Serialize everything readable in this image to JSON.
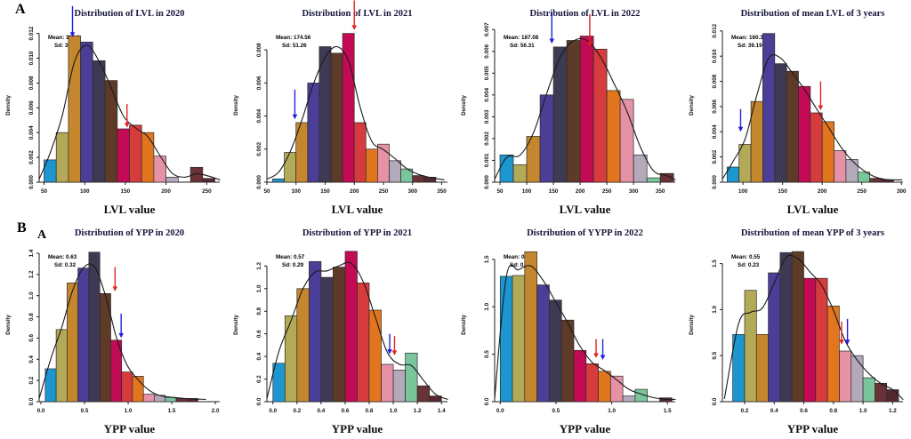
{
  "figure": {
    "section_labels": {
      "a": "A",
      "b": "B",
      "b_sub": "A"
    },
    "background": "#ffffff",
    "title_color": "#15153c",
    "curve_color": "#1a1a1a",
    "bar_outline": "#2e2a28",
    "palette": [
      "#1d96cf",
      "#b3aa58",
      "#c5872e",
      "#4a3e97",
      "#3f3a53",
      "#5e3a28",
      "#c30a54",
      "#d63b3e",
      "#e2761f",
      "#e591a6",
      "#b4a9bb",
      "#79c59c",
      "#693238",
      "#552830"
    ],
    "arrow_colors": {
      "blue": "#2020dd",
      "red": "#e32222"
    }
  },
  "chart_data": [
    {
      "id": "lvl-2020",
      "type": "bar",
      "title": "Distribution of  LVL in 2020",
      "xlabel": "LVL value",
      "ylabel": "Density",
      "mean_label": "Mean: 119.4",
      "sd_label": "Sd: 39.91",
      "bin_start": 50,
      "bin_width": 15,
      "values": [
        0.0018,
        0.004,
        0.0118,
        0.0113,
        0.0098,
        0.0082,
        0.0043,
        0.0046,
        0.004,
        0.0021,
        0.0004,
        0,
        0.0012,
        0.0003
      ],
      "xlim": [
        44,
        266
      ],
      "xticks": [
        50,
        100,
        150,
        200,
        250
      ],
      "xtick_labels": [
        "50",
        "100",
        "150",
        "200",
        "250"
      ],
      "ylim": [
        0,
        0.0124
      ],
      "yticks": [
        0,
        0.002,
        0.004,
        0.006,
        0.008,
        0.01,
        0.012
      ],
      "ytick_labels": [
        "0.000",
        "0.002",
        "0.004",
        "0.006",
        "0.008",
        "0.010",
        "0.012"
      ],
      "legend": "none",
      "grid": false,
      "curve": true,
      "arrows": [
        {
          "color": "blue",
          "x": 85,
          "y_tip": 0.0117,
          "y_tail": 0.0142
        },
        {
          "color": "red",
          "x": 152,
          "y_tip": 0.0044,
          "y_tail": 0.0063
        }
      ]
    },
    {
      "id": "lvl-2021",
      "type": "bar",
      "title": "Distribution of  LVL in 2021",
      "xlabel": "LVL value",
      "ylabel": "Density",
      "mean_label": "Mean: 174.56",
      "sd_label": "Sd: 51.26",
      "bin_start": 60,
      "bin_width": 20,
      "values": [
        0.0002,
        0.0018,
        0.0036,
        0.006,
        0.0082,
        0.0078,
        0.009,
        0.0036,
        0.002,
        0.0023,
        0.0013,
        0.0008,
        0.0004,
        0.0003
      ],
      "xlim": [
        50,
        360
      ],
      "xticks": [
        50,
        100,
        150,
        200,
        250,
        300,
        350
      ],
      "xtick_labels": [
        "50",
        "100",
        "150",
        "200",
        "250",
        "300",
        "350"
      ],
      "ylim": [
        0,
        0.0093
      ],
      "yticks": [
        0,
        0.002,
        0.004,
        0.006,
        0.008
      ],
      "ytick_labels": [
        "0.000",
        "0.002",
        "0.004",
        "0.006",
        "0.008"
      ],
      "legend": "none",
      "grid": false,
      "curve": true,
      "arrows": [
        {
          "color": "blue",
          "x": 98,
          "y_tip": 0.0038,
          "y_tail": 0.0056
        },
        {
          "color": "red",
          "x": 200,
          "y_tip": 0.0092,
          "y_tail": 0.011
        }
      ]
    },
    {
      "id": "lvl-2022",
      "type": "bar",
      "title": "Distribution of  LVL in 2022",
      "xlabel": "LVL value",
      "ylabel": "Density",
      "mean_label": "Mean: 187.08",
      "sd_label": "Sd: 56.31",
      "bin_start": 50,
      "bin_width": 25,
      "values": [
        0.00125,
        0.0008,
        0.0021,
        0.004,
        0.0062,
        0.0065,
        0.0067,
        0.0061,
        0.0042,
        0.0038,
        0.00125,
        0.0002,
        0.0004
      ],
      "xlim": [
        40,
        378
      ],
      "xticks": [
        50,
        100,
        150,
        200,
        250,
        300,
        350
      ],
      "xtick_labels": [
        "50",
        "100",
        "150",
        "200",
        "250",
        "300",
        "350"
      ],
      "ylim": [
        0,
        0.00705
      ],
      "yticks": [
        0,
        0.001,
        0.002,
        0.003,
        0.004,
        0.005,
        0.006,
        0.007
      ],
      "ytick_labels": [
        "0.000",
        "0.001",
        "0.002",
        "0.003",
        "0.004",
        "0.005",
        "0.006",
        "0.007"
      ],
      "legend": "none",
      "grid": false,
      "curve": true,
      "arrows": [
        {
          "color": "blue",
          "x": 147,
          "y_tip": 0.00635,
          "y_tail": 0.0078
        },
        {
          "color": "red",
          "x": 218,
          "y_tip": 0.0062,
          "y_tail": 0.0077
        }
      ]
    },
    {
      "id": "lvl-mean",
      "type": "bar",
      "title": "Distribution of  mean LVL of 3 years",
      "xlabel": "LVL value",
      "ylabel": "Density",
      "mean_label": "Mean: 160.39",
      "sd_label": "Sd: 39.19",
      "bin_start": 80,
      "bin_width": 15,
      "values": [
        0.0012,
        0.003,
        0.0064,
        0.0118,
        0.0094,
        0.0088,
        0.0076,
        0.0055,
        0.0048,
        0.0025,
        0.0018,
        0.0008,
        0.0003,
        0.0002
      ],
      "xlim": [
        74,
        302
      ],
      "xticks": [
        100,
        150,
        200,
        250,
        300
      ],
      "xtick_labels": [
        "100",
        "150",
        "200",
        "250",
        "300"
      ],
      "ylim": [
        0,
        0.0122
      ],
      "yticks": [
        0,
        0.002,
        0.004,
        0.006,
        0.008,
        0.01,
        0.012
      ],
      "ytick_labels": [
        "0.000",
        "0.002",
        "0.004",
        "0.006",
        "0.008",
        "0.010",
        "0.012"
      ],
      "legend": "none",
      "grid": false,
      "curve": true,
      "arrows": [
        {
          "color": "blue",
          "x": 97,
          "y_tip": 0.004,
          "y_tail": 0.0058
        },
        {
          "color": "red",
          "x": 198,
          "y_tip": 0.0057,
          "y_tail": 0.008
        }
      ]
    },
    {
      "id": "ypp-2020",
      "type": "bar",
      "title": "Distribution of YPP in 2020",
      "xlabel": "YPP value",
      "ylabel": "Density",
      "mean_label": "Mean: 0.63",
      "sd_label": "Sd: 0.32",
      "bin_start": 0.05,
      "bin_width": 0.125,
      "values": [
        0.31,
        0.68,
        1.12,
        1.26,
        1.41,
        1.02,
        0.58,
        0.28,
        0.24,
        0.07,
        0.06,
        0.04,
        0.03,
        0.03
      ],
      "xlim": [
        -0.02,
        2.05
      ],
      "xticks": [
        0.0,
        0.5,
        1.0,
        1.5,
        2.0
      ],
      "xtick_labels": [
        "0.0",
        "0.5",
        "1.0",
        "1.5",
        "2.0"
      ],
      "ylim": [
        0,
        1.45
      ],
      "yticks": [
        0,
        0.2,
        0.4,
        0.6,
        0.8,
        1.0,
        1.2,
        1.4
      ],
      "ytick_labels": [
        "0.0",
        "0.2",
        "0.4",
        "0.6",
        "0.8",
        "1.0",
        "1.2",
        "1.4"
      ],
      "legend": "none",
      "grid": false,
      "curve": true,
      "arrows": [
        {
          "color": "red",
          "x": 0.85,
          "y_tip": 1.04,
          "y_tail": 1.27
        },
        {
          "color": "blue",
          "x": 0.92,
          "y_tip": 0.6,
          "y_tail": 0.83
        }
      ]
    },
    {
      "id": "ypp-2021",
      "type": "bar",
      "title": "Distribution of YPP in 2021",
      "xlabel": "YPP value",
      "ylabel": "Density",
      "mean_label": "Mean: 0.57",
      "sd_label": "Sd: 0.29",
      "bin_start": 0.0,
      "bin_width": 0.1,
      "values": [
        0.34,
        0.76,
        1.0,
        1.24,
        1.1,
        1.19,
        1.33,
        1.05,
        0.81,
        0.33,
        0.28,
        0.43,
        0.14,
        0.05
      ],
      "xlim": [
        -0.05,
        1.45
      ],
      "xticks": [
        0.0,
        0.2,
        0.4,
        0.6,
        0.8,
        1.0,
        1.2,
        1.4
      ],
      "xtick_labels": [
        "0.0",
        "0.2",
        "0.4",
        "0.6",
        "0.8",
        "1.0",
        "1.2",
        "1.4"
      ],
      "ylim": [
        0,
        1.36
      ],
      "yticks": [
        0,
        0.2,
        0.4,
        0.6,
        0.8,
        1.0,
        1.2
      ],
      "ytick_labels": [
        "0.0",
        "0.2",
        "0.4",
        "0.6",
        "0.8",
        "1.0",
        "1.2"
      ],
      "legend": "none",
      "grid": false,
      "curve": true,
      "arrows": [
        {
          "color": "blue",
          "x": 0.97,
          "y_tip": 0.42,
          "y_tail": 0.6
        },
        {
          "color": "red",
          "x": 1.01,
          "y_tip": 0.41,
          "y_tail": 0.58
        }
      ]
    },
    {
      "id": "ypp-2022",
      "type": "bar",
      "title": "Distribution of YYPP in 2022",
      "xlabel": "YPP value",
      "ylabel": "Density",
      "mean_label": "Mean: 0.43",
      "sd_label": "Sd: 0.3",
      "bin_start": 0.0,
      "bin_width": 0.11,
      "values": [
        1.32,
        1.33,
        1.58,
        1.23,
        1.07,
        0.86,
        0.54,
        0.4,
        0.32,
        0.27,
        0.06,
        0.13,
        0,
        0.04
      ],
      "xlim": [
        -0.05,
        1.57
      ],
      "xticks": [
        0.0,
        0.5,
        1.0,
        1.5
      ],
      "xtick_labels": [
        "0.0",
        "0.5",
        "1.0",
        "1.5"
      ],
      "ylim": [
        0,
        1.62
      ],
      "yticks": [
        0,
        0.5,
        1.0,
        1.5
      ],
      "ytick_labels": [
        "0.0",
        "0.5",
        "1.0",
        "1.5"
      ],
      "legend": "none",
      "grid": false,
      "curve": true,
      "arrows": [
        {
          "color": "red",
          "x": 0.86,
          "y_tip": 0.46,
          "y_tail": 0.66
        },
        {
          "color": "blue",
          "x": 0.92,
          "y_tip": 0.44,
          "y_tail": 0.66
        }
      ]
    },
    {
      "id": "ypp-mean",
      "type": "bar",
      "title": "Distribution of mean YPP of 3 years",
      "xlabel": "YPP value",
      "ylabel": "Density",
      "mean_label": "Mean: 0.55",
      "sd_label": "Sd: 0.23",
      "bin_start": 0.12,
      "bin_width": 0.08,
      "values": [
        0.73,
        1.21,
        0.73,
        1.4,
        1.62,
        1.63,
        1.34,
        1.34,
        1.04,
        0.55,
        0.5,
        0.26,
        0.2,
        0.13
      ],
      "xlim": [
        0.05,
        1.27
      ],
      "xticks": [
        0.2,
        0.4,
        0.6,
        0.8,
        1.0,
        1.2
      ],
      "xtick_labels": [
        "0.2",
        "0.4",
        "0.6",
        "0.8",
        "1.0",
        "1.2"
      ],
      "ylim": [
        0,
        1.67
      ],
      "yticks": [
        0,
        0.5,
        1.0,
        1.5
      ],
      "ytick_labels": [
        "0.0",
        "0.5",
        "1.0",
        "1.5"
      ],
      "legend": "none",
      "grid": false,
      "curve": true,
      "arrows": [
        {
          "color": "red",
          "x": 0.855,
          "y_tip": 0.62,
          "y_tail": 0.87
        },
        {
          "color": "blue",
          "x": 0.895,
          "y_tip": 0.62,
          "y_tail": 0.9
        }
      ]
    }
  ]
}
